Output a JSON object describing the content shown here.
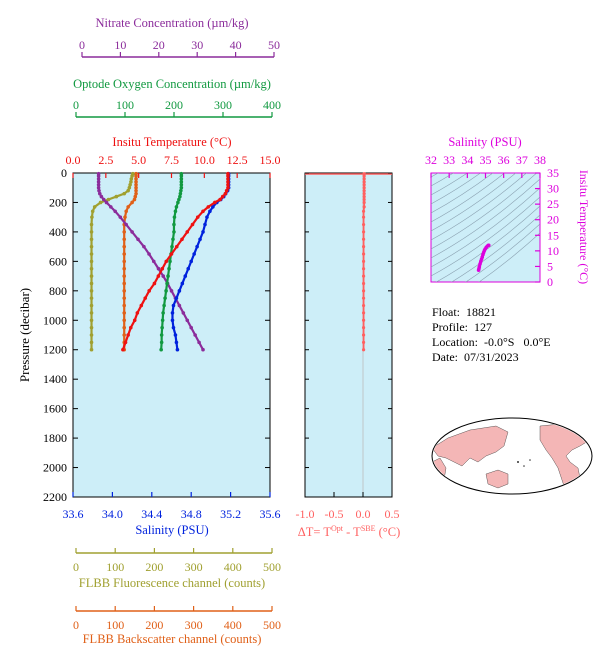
{
  "colors": {
    "panel_bg": "#cdeef8",
    "nitrate": "#8b2c9b",
    "oxygen": "#119940",
    "temperature": "#ee1111",
    "salinity": "#0022dd",
    "fluorescence": "#a0a030",
    "backscatter": "#e06018",
    "delta_t": "#ff6060",
    "ts": "#dd00dd"
  },
  "info": {
    "float": "Float:  18821",
    "profile": "Profile:  127",
    "location": "Location:  -0.0°S   0.0°E",
    "date": "Date:  07/31/2023"
  },
  "chart_data": [
    {
      "type": "line",
      "name": "profile",
      "ylabel": "Pressure (decibar)",
      "ylim": [
        2200,
        0
      ],
      "yticks": [
        "0",
        "200",
        "400",
        "600",
        "800",
        "1000",
        "1200",
        "1400",
        "1600",
        "1800",
        "2000",
        "2200"
      ],
      "axes": {
        "nitrate": {
          "title": "Nitrate Concentration (µm/kg)",
          "range": [
            0,
            50
          ],
          "ticks": [
            "0",
            "10",
            "20",
            "30",
            "40",
            "50"
          ]
        },
        "oxygen": {
          "title": "Optode Oxygen Concentration (µm/kg)",
          "range": [
            0,
            400
          ],
          "ticks": [
            "0",
            "100",
            "200",
            "300",
            "400"
          ]
        },
        "temperature": {
          "title": "Insitu Temperature (°C)",
          "range": [
            0,
            15
          ],
          "ticks": [
            "0.0",
            "2.5",
            "5.0",
            "7.5",
            "10.0",
            "12.5",
            "15.0"
          ]
        },
        "salinity": {
          "title": "Salinity (PSU)",
          "range": [
            33.6,
            35.6
          ],
          "ticks": [
            "33.6",
            "34.0",
            "34.4",
            "34.8",
            "35.2",
            "35.6"
          ]
        },
        "fluorescence": {
          "title": "FLBB Fluorescence channel (counts)",
          "range": [
            0,
            500
          ],
          "ticks": [
            "0",
            "100",
            "200",
            "300",
            "400",
            "500"
          ]
        },
        "backscatter": {
          "title": "FLBB Backscatter channel (counts)",
          "range": [
            0,
            500
          ],
          "ticks": [
            "0",
            "100",
            "200",
            "300",
            "400",
            "500"
          ]
        }
      },
      "series": {
        "temperature": {
          "p": [
            5,
            20,
            40,
            60,
            80,
            100,
            120,
            140,
            160,
            180,
            200,
            230,
            260,
            300,
            350,
            400,
            450,
            500,
            550,
            600,
            650,
            700,
            750,
            800,
            850,
            900,
            950,
            1000,
            1050,
            1100,
            1150,
            1200
          ],
          "v": [
            11.8,
            11.8,
            11.8,
            11.8,
            11.8,
            11.8,
            11.7,
            11.6,
            11.4,
            11.2,
            10.8,
            10.3,
            9.9,
            9.5,
            9.1,
            8.7,
            8.3,
            7.9,
            7.5,
            7.1,
            6.8,
            6.5,
            6.2,
            5.8,
            5.5,
            5.2,
            4.9,
            4.7,
            4.4,
            4.2,
            4.0,
            3.8
          ]
        },
        "salinity": {
          "p": [
            5,
            20,
            40,
            60,
            80,
            100,
            120,
            140,
            160,
            180,
            200,
            230,
            260,
            300,
            350,
            400,
            450,
            500,
            550,
            600,
            650,
            700,
            750,
            800,
            850,
            900,
            950,
            1000,
            1050,
            1100,
            1150,
            1200
          ],
          "v": [
            35.18,
            35.18,
            35.18,
            35.18,
            35.18,
            35.18,
            35.17,
            35.15,
            35.13,
            35.1,
            35.06,
            35.02,
            34.99,
            34.96,
            34.94,
            34.92,
            34.89,
            34.86,
            34.83,
            34.8,
            34.77,
            34.74,
            34.71,
            34.68,
            34.65,
            34.62,
            34.61,
            34.61,
            34.62,
            34.64,
            34.65,
            34.66
          ]
        },
        "oxygen": {
          "p": [
            5,
            20,
            40,
            60,
            80,
            100,
            120,
            140,
            160,
            180,
            200,
            230,
            260,
            300,
            350,
            400,
            450,
            500,
            550,
            600,
            650,
            700,
            750,
            800,
            850,
            900,
            950,
            1000,
            1050,
            1100,
            1150,
            1200
          ],
          "v": [
            220,
            220,
            220,
            220,
            220,
            220,
            219,
            218,
            217,
            215,
            213,
            210,
            208,
            206,
            205,
            205,
            203,
            201,
            199,
            197,
            195,
            193,
            191,
            189,
            187,
            185,
            183,
            182,
            181,
            180,
            180,
            179
          ]
        },
        "nitrate": {
          "p": [
            5,
            20,
            40,
            60,
            80,
            100,
            120,
            140,
            160,
            180,
            200,
            230,
            260,
            300,
            350,
            400,
            450,
            500,
            550,
            600,
            650,
            700,
            750,
            800,
            850,
            900,
            950,
            1000,
            1050,
            1100,
            1150,
            1200
          ],
          "v": [
            6.5,
            6.5,
            6.5,
            6.5,
            6.5,
            6.5,
            6.6,
            6.8,
            7.2,
            7.8,
            8.5,
            9.6,
            10.7,
            12,
            13.5,
            15,
            16.5,
            18,
            19.3,
            20.5,
            21.7,
            22.9,
            24,
            25,
            26,
            27,
            28,
            29,
            30,
            31,
            32,
            33
          ]
        },
        "fluorescence": {
          "p": [
            5,
            20,
            40,
            60,
            80,
            100,
            120,
            140,
            160,
            180,
            200,
            230,
            260,
            300,
            350,
            400,
            450,
            500,
            550,
            600,
            650,
            700,
            750,
            800,
            850,
            900,
            950,
            1000,
            1050,
            1100,
            1150,
            1200
          ],
          "v": [
            152,
            150,
            148,
            147,
            145,
            143,
            140,
            130,
            110,
            90,
            70,
            55,
            50,
            48,
            47,
            47,
            47,
            47,
            47,
            47,
            47,
            47,
            47,
            47,
            47,
            47,
            47,
            47,
            47,
            47,
            47,
            47
          ]
        },
        "backscatter": {
          "p": [
            5,
            20,
            40,
            60,
            80,
            100,
            120,
            140,
            160,
            180,
            200,
            230,
            260,
            300,
            350,
            400,
            450,
            500,
            550,
            600,
            650,
            700,
            750,
            800,
            850,
            900,
            950,
            1000,
            1050,
            1100,
            1150,
            1200
          ],
          "v": [
            160,
            160,
            160,
            160,
            160,
            160,
            160,
            160,
            158,
            156,
            150,
            140,
            135,
            132,
            130,
            130,
            130,
            130,
            130,
            130,
            130,
            130,
            130,
            130,
            130,
            130,
            130,
            130,
            130,
            130,
            130,
            130
          ]
        }
      }
    },
    {
      "type": "line",
      "name": "delta_t",
      "xlabel": "ΔT= T",
      "xlabel_sup1": "Opt",
      "xlabel_mid": " - T",
      "xlabel_sup2": "SBE",
      "xlabel_tail": " (°C)",
      "xlim": [
        -1.0,
        0.5
      ],
      "xticks": [
        "-1.0",
        "-0.5",
        "0.0",
        "0.5"
      ],
      "ylim": [
        2200,
        0
      ],
      "series": {
        "p": [
          5,
          20,
          40,
          60,
          80,
          100,
          120,
          140,
          160,
          180,
          200,
          230,
          260,
          300,
          350,
          400,
          450,
          500,
          550,
          600,
          650,
          700,
          750,
          800,
          850,
          900,
          950,
          1000,
          1050,
          1100,
          1150,
          1200
        ],
        "v": [
          0.02,
          0.02,
          0.02,
          0.02,
          0.02,
          0.02,
          0.02,
          0.02,
          0.02,
          0.02,
          0.02,
          0.02,
          0.01,
          0.01,
          0.01,
          0.01,
          0.01,
          0.01,
          0.01,
          0.01,
          0.01,
          0.01,
          0.01,
          0.01,
          0.01,
          0.01,
          0.01,
          0.01,
          0.01,
          0.01,
          0.01,
          0.01
        ]
      }
    },
    {
      "type": "scatter",
      "name": "ts",
      "title": "Salinity (PSU)",
      "xlim": [
        32,
        38
      ],
      "xticks": [
        "32",
        "33",
        "34",
        "35",
        "36",
        "37",
        "38"
      ],
      "ylabel": "Insitu Temperature (°C)",
      "ylim": [
        0,
        35
      ],
      "yticks": [
        "0",
        "5",
        "10",
        "15",
        "20",
        "25",
        "30",
        "35"
      ],
      "points": {
        "s": [
          34.62,
          34.64,
          34.66,
          34.7,
          34.74,
          34.78,
          34.82,
          34.86,
          34.9,
          34.94,
          34.98,
          35.04,
          35.1,
          35.16,
          35.18
        ],
        "t": [
          3.8,
          4.3,
          4.9,
          5.8,
          6.6,
          7.3,
          8.0,
          8.8,
          9.5,
          10.1,
          10.6,
          11.1,
          11.5,
          11.8,
          11.8
        ]
      }
    }
  ]
}
